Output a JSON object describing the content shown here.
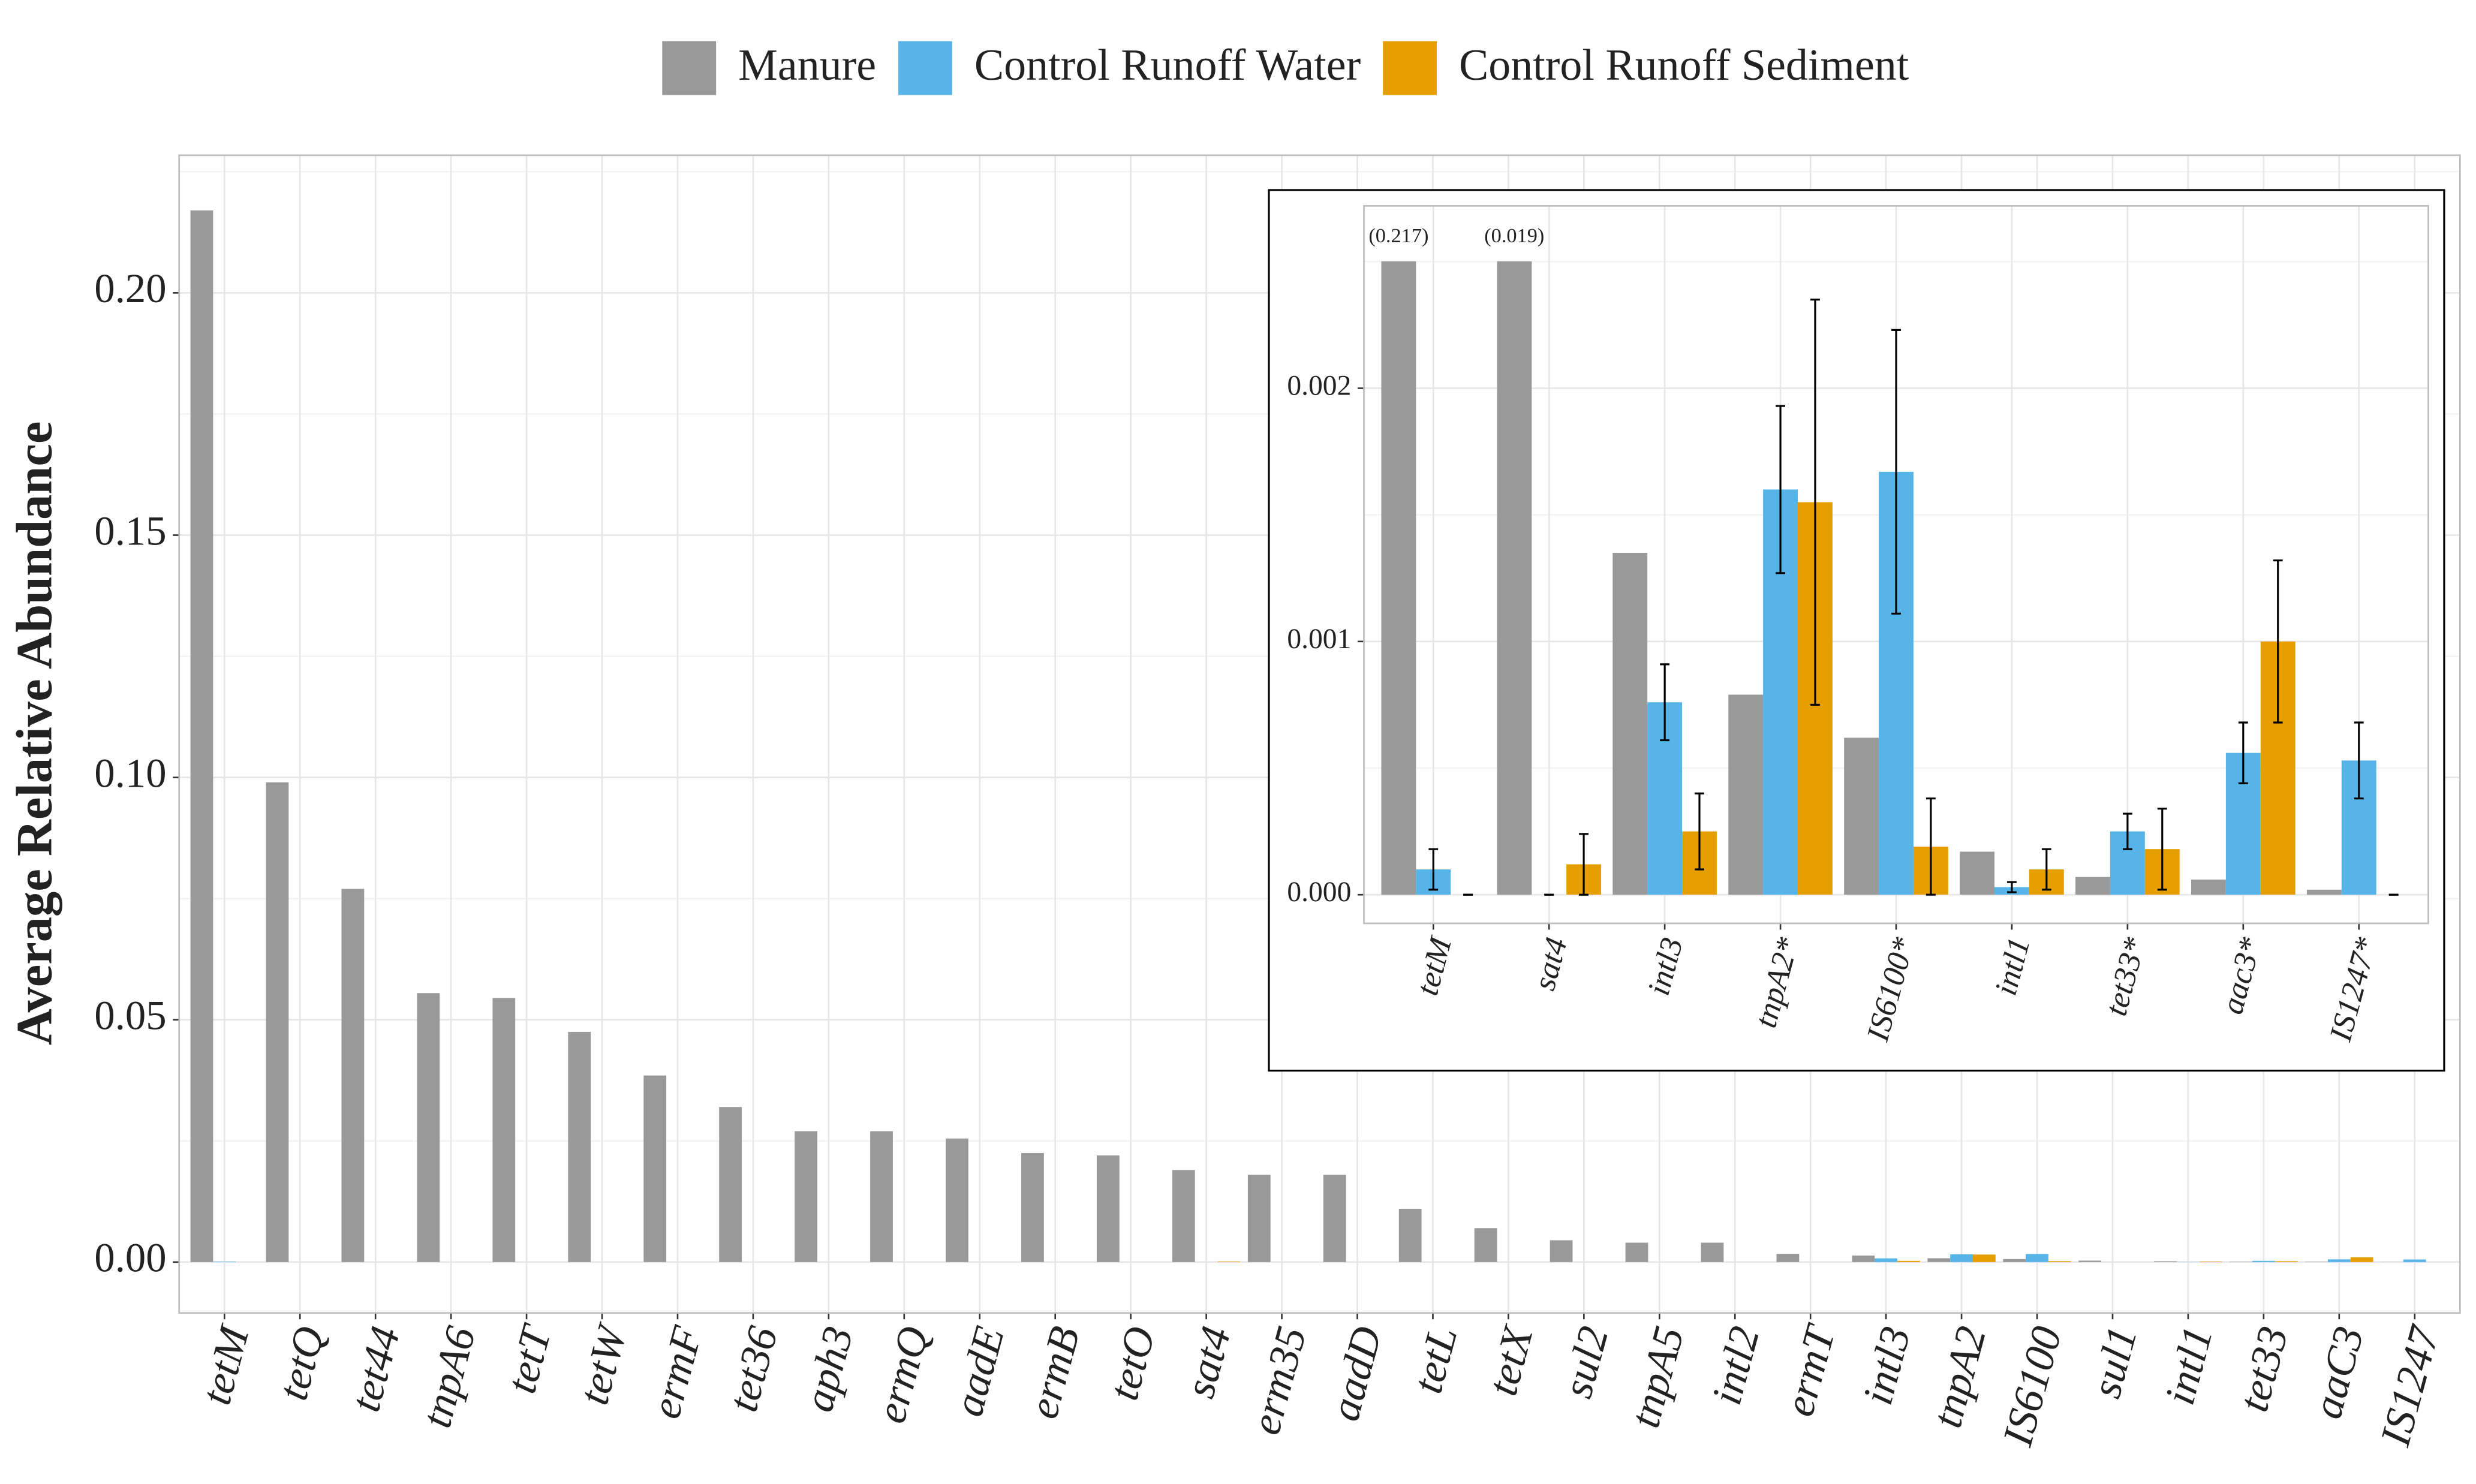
{
  "chart_data": [
    {
      "type": "bar",
      "y_label": "Average Relative Abundance",
      "categories": [
        "tetM",
        "tetQ",
        "tet44",
        "tnpA6",
        "tetT",
        "tetW",
        "ermF",
        "tet36",
        "aph3",
        "ermQ",
        "aadE",
        "ermB",
        "tetO",
        "sat4",
        "erm35",
        "aadD",
        "tetL",
        "tetX",
        "sul2",
        "tnpA5",
        "intl2",
        "ermT",
        "intl3",
        "tnpA2",
        "IS6100",
        "sul1",
        "intl1",
        "tet33",
        "aaC3",
        "IS1247"
      ],
      "series": [
        {
          "name": "Manure",
          "color": "#999999",
          "values": [
            0.217,
            0.099,
            0.077,
            0.0555,
            0.0545,
            0.0475,
            0.0385,
            0.032,
            0.027,
            0.027,
            0.0255,
            0.0225,
            0.022,
            0.019,
            0.018,
            0.018,
            0.011,
            0.007,
            0.0045,
            0.004,
            0.004,
            0.0017,
            0.00135,
            0.00079,
            0.00062,
            0.0003,
            0.00017,
            7e-05,
            6e-05,
            2e-05
          ]
        },
        {
          "name": "Control Runoff Water",
          "color": "#56B4E9",
          "values": [
            0.0001,
            0,
            0,
            0,
            0,
            0,
            0,
            0,
            0,
            0,
            0,
            0,
            0,
            0,
            0,
            0,
            0,
            0,
            0,
            0,
            0,
            0,
            0.00076,
            0.0016,
            0.00167,
            0,
            3e-05,
            0.00025,
            0.00056,
            0.00053
          ]
        },
        {
          "name": "Control Runoff Sediment",
          "color": "#E69F00",
          "values": [
            0,
            0,
            0,
            0,
            0,
            0,
            0,
            0,
            0,
            0,
            0,
            0,
            0,
            0.00012,
            0,
            0,
            0,
            0,
            0,
            0,
            0,
            0,
            0.00025,
            0.00155,
            0.00019,
            0,
            0.0001,
            0.00018,
            0.001,
            0
          ]
        }
      ],
      "ylim": [
        -0.0105,
        0.2284
      ],
      "yticks": [
        {
          "value": 0,
          "label": "0.00"
        },
        {
          "value": 0.05,
          "label": "0.05"
        },
        {
          "value": 0.1,
          "label": "0.10"
        },
        {
          "value": 0.15,
          "label": "0.15"
        },
        {
          "value": 0.2,
          "label": "0.20"
        }
      ],
      "grid": true,
      "legend": "top"
    },
    {
      "type": "bar",
      "categories": [
        "tetM",
        "sat4",
        "intl3",
        "tnpA2*",
        "IS6100*",
        "intl1",
        "tet33*",
        "aac3*",
        "IS1247*"
      ],
      "series": [
        {
          "color": "#999999",
          "values": [
            0.217,
            0.019,
            0.00135,
            0.00079,
            0.00062,
            0.00017,
            7e-05,
            6e-05,
            2e-05
          ],
          "value_labels": [
            "(0.217)",
            "(0.019)",
            null,
            null,
            null,
            null,
            null,
            null,
            null
          ]
        },
        {
          "color": "#56B4E9",
          "values": [
            0.0001,
            0,
            0.00076,
            0.0016,
            0.00167,
            3e-05,
            0.00025,
            0.00056,
            0.00053
          ],
          "errors": [
            8e-05,
            0,
            0.00015,
            0.00033,
            0.00056,
            2e-05,
            7e-05,
            0.00012,
            0.00015
          ]
        },
        {
          "color": "#E69F00",
          "values": [
            0,
            0.00012,
            0.00025,
            0.00155,
            0.00019,
            0.0001,
            0.00018,
            0.001,
            0
          ],
          "errors": [
            0,
            0.00012,
            0.00015,
            0.0008,
            0.00019,
            8e-05,
            0.00016,
            0.00032,
            0
          ]
        }
      ],
      "ylim": [
        -0.000113,
        0.00272
      ],
      "yticks": [
        {
          "value": 0,
          "label": "0.000"
        },
        {
          "value": 0.001,
          "label": "0.001"
        },
        {
          "value": 0.002,
          "label": "0.002"
        }
      ],
      "grid": true
    }
  ]
}
